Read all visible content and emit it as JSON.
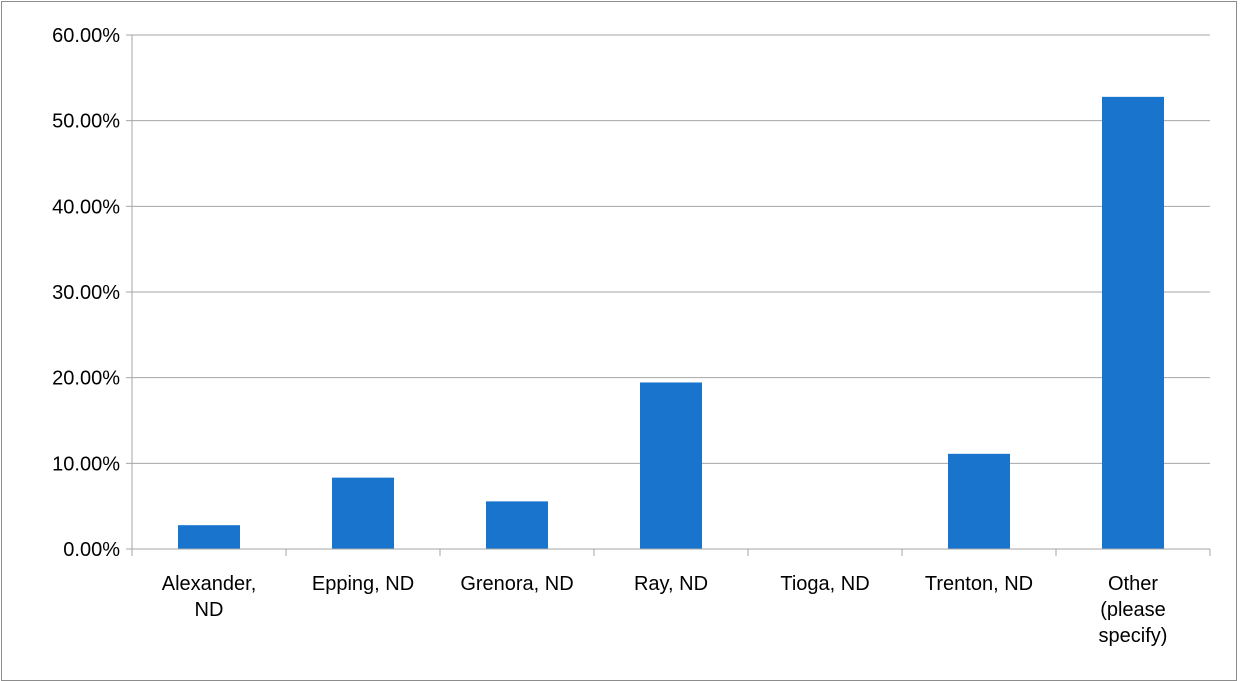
{
  "chart_data": {
    "type": "bar",
    "categories": [
      [
        "Alexander,",
        "ND"
      ],
      [
        "Epping, ND"
      ],
      [
        "Grenora, ND"
      ],
      [
        "Ray, ND"
      ],
      [
        "Tioga, ND"
      ],
      [
        "Trenton, ND"
      ],
      [
        "Other",
        "(please",
        "specify)"
      ]
    ],
    "values": [
      2.78,
      8.33,
      5.56,
      19.44,
      0.0,
      11.11,
      52.78
    ],
    "ylim": [
      0,
      60
    ],
    "yticks": [
      0,
      10,
      20,
      30,
      40,
      50,
      60
    ],
    "ytick_labels": [
      "0.00%",
      "10.00%",
      "20.00%",
      "30.00%",
      "40.00%",
      "50.00%",
      "60.00%"
    ],
    "title": "",
    "xlabel": "",
    "ylabel": "",
    "grid": true,
    "legend": "none",
    "colors": {
      "bar": "#1874CD",
      "grid": "#a6a6a6",
      "axis": "#a6a6a6"
    }
  }
}
